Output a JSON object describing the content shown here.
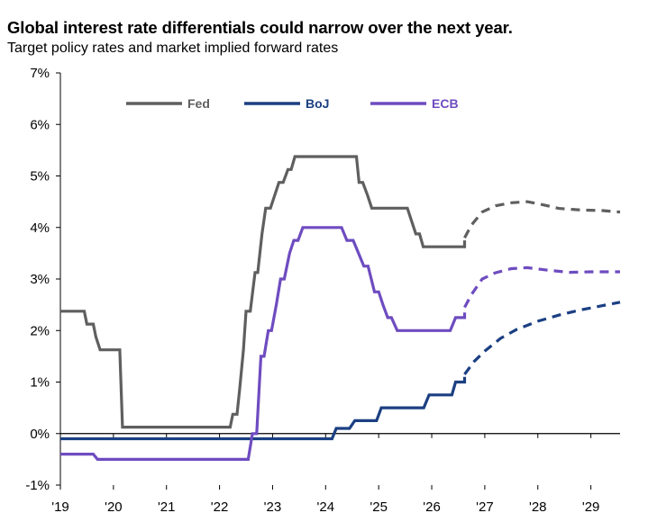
{
  "title": "Global interest rate differentials could narrow over the next year.",
  "subtitle": "Target policy rates and market implied forward rates",
  "colors": {
    "Fed": "#5f5f5f",
    "BoJ": "#1b3f82",
    "ECB": "#6e4cc0",
    "axis": "#000000"
  },
  "chart_data": {
    "type": "line",
    "title": "Global interest rate differentials could narrow over the next year.",
    "subtitle": "Target policy rates and market implied forward rates",
    "xlabel": "",
    "ylabel": "",
    "xlim": [
      2019,
      2029.55
    ],
    "ylim": [
      -1,
      7
    ],
    "x_ticks": [
      "'19",
      "'20",
      "'21",
      "'22",
      "'23",
      "'24",
      "'25",
      "'26",
      "'27",
      "'28",
      "'29"
    ],
    "y_ticks": [
      "-1%",
      "0%",
      "1%",
      "2%",
      "3%",
      "4%",
      "5%",
      "6%",
      "7%"
    ],
    "legend": {
      "placement": "top-left",
      "entries": [
        "Fed",
        "BoJ",
        "ECB"
      ]
    },
    "series": [
      {
        "name": "Fed",
        "actual": [
          [
            2019.0,
            2.375
          ],
          [
            2019.45,
            2.375
          ],
          [
            2019.5,
            2.125
          ],
          [
            2019.62,
            2.125
          ],
          [
            2019.67,
            1.875
          ],
          [
            2019.75,
            1.625
          ],
          [
            2020.12,
            1.625
          ],
          [
            2020.17,
            0.125
          ],
          [
            2022.2,
            0.125
          ],
          [
            2022.25,
            0.375
          ],
          [
            2022.33,
            0.375
          ],
          [
            2022.38,
            0.875
          ],
          [
            2022.45,
            1.625
          ],
          [
            2022.5,
            2.375
          ],
          [
            2022.58,
            2.375
          ],
          [
            2022.67,
            3.125
          ],
          [
            2022.72,
            3.125
          ],
          [
            2022.8,
            3.875
          ],
          [
            2022.87,
            4.375
          ],
          [
            2022.96,
            4.375
          ],
          [
            2023.04,
            4.625
          ],
          [
            2023.12,
            4.875
          ],
          [
            2023.2,
            4.875
          ],
          [
            2023.29,
            5.125
          ],
          [
            2023.35,
            5.125
          ],
          [
            2023.42,
            5.375
          ],
          [
            2024.58,
            5.375
          ],
          [
            2024.63,
            4.875
          ],
          [
            2024.7,
            4.875
          ],
          [
            2024.79,
            4.625
          ],
          [
            2024.87,
            4.375
          ],
          [
            2025.54,
            4.375
          ],
          [
            2025.62,
            4.125
          ],
          [
            2025.7,
            3.875
          ],
          [
            2025.77,
            3.875
          ],
          [
            2025.84,
            3.625
          ],
          [
            2026.62,
            3.625
          ],
          [
            2026.62,
            3.75
          ]
        ],
        "forward": [
          [
            2026.62,
            3.8
          ],
          [
            2026.75,
            4.05
          ],
          [
            2026.95,
            4.3
          ],
          [
            2027.2,
            4.42
          ],
          [
            2027.5,
            4.48
          ],
          [
            2027.8,
            4.5
          ],
          [
            2028.1,
            4.44
          ],
          [
            2028.4,
            4.37
          ],
          [
            2028.8,
            4.34
          ],
          [
            2029.2,
            4.33
          ],
          [
            2029.55,
            4.3
          ]
        ]
      },
      {
        "name": "BoJ",
        "actual": [
          [
            2019.0,
            -0.1
          ],
          [
            2024.12,
            -0.1
          ],
          [
            2024.2,
            0.1
          ],
          [
            2024.45,
            0.1
          ],
          [
            2024.55,
            0.25
          ],
          [
            2024.96,
            0.25
          ],
          [
            2025.05,
            0.5
          ],
          [
            2025.85,
            0.5
          ],
          [
            2025.95,
            0.75
          ],
          [
            2026.38,
            0.75
          ],
          [
            2026.45,
            1.0
          ],
          [
            2026.62,
            1.0
          ],
          [
            2026.62,
            1.1
          ]
        ],
        "forward": [
          [
            2026.62,
            1.15
          ],
          [
            2026.8,
            1.4
          ],
          [
            2027.0,
            1.6
          ],
          [
            2027.3,
            1.85
          ],
          [
            2027.6,
            2.02
          ],
          [
            2028.0,
            2.18
          ],
          [
            2028.4,
            2.3
          ],
          [
            2028.8,
            2.4
          ],
          [
            2029.2,
            2.48
          ],
          [
            2029.55,
            2.55
          ]
        ]
      },
      {
        "name": "ECB",
        "actual": [
          [
            2019.0,
            -0.4
          ],
          [
            2019.62,
            -0.4
          ],
          [
            2019.7,
            -0.5
          ],
          [
            2022.54,
            -0.5
          ],
          [
            2022.62,
            0.0
          ],
          [
            2022.7,
            0.0
          ],
          [
            2022.78,
            1.5
          ],
          [
            2022.84,
            1.5
          ],
          [
            2022.92,
            2.0
          ],
          [
            2022.98,
            2.0
          ],
          [
            2023.07,
            2.5
          ],
          [
            2023.15,
            3.0
          ],
          [
            2023.22,
            3.0
          ],
          [
            2023.32,
            3.5
          ],
          [
            2023.4,
            3.75
          ],
          [
            2023.48,
            3.75
          ],
          [
            2023.57,
            4.0
          ],
          [
            2024.3,
            4.0
          ],
          [
            2024.4,
            3.75
          ],
          [
            2024.52,
            3.75
          ],
          [
            2024.62,
            3.5
          ],
          [
            2024.72,
            3.25
          ],
          [
            2024.8,
            3.25
          ],
          [
            2024.92,
            2.75
          ],
          [
            2025.0,
            2.75
          ],
          [
            2025.08,
            2.5
          ],
          [
            2025.17,
            2.25
          ],
          [
            2025.24,
            2.25
          ],
          [
            2025.35,
            2.0
          ],
          [
            2026.35,
            2.0
          ],
          [
            2026.45,
            2.25
          ],
          [
            2026.62,
            2.25
          ],
          [
            2026.62,
            2.35
          ]
        ],
        "forward": [
          [
            2026.62,
            2.45
          ],
          [
            2026.75,
            2.7
          ],
          [
            2026.95,
            3.0
          ],
          [
            2027.2,
            3.12
          ],
          [
            2027.5,
            3.2
          ],
          [
            2027.8,
            3.22
          ],
          [
            2028.2,
            3.17
          ],
          [
            2028.6,
            3.13
          ],
          [
            2029.0,
            3.14
          ],
          [
            2029.55,
            3.14
          ]
        ]
      }
    ]
  }
}
